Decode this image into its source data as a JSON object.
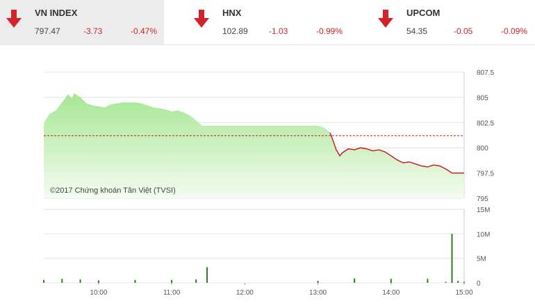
{
  "indices": [
    {
      "name": "VN INDEX",
      "value": "797.47",
      "change": "-3.73",
      "percent": "-0.47%",
      "active": true
    },
    {
      "name": "HNX",
      "value": "102.89",
      "change": "-1.03",
      "percent": "-0.99%",
      "active": false
    },
    {
      "name": "UPCOM",
      "value": "54.35",
      "change": "-0.05",
      "percent": "-0.09%",
      "active": false
    }
  ],
  "colors": {
    "down": "#d2232a",
    "area_top": "#a6e693",
    "area_bottom": "#f4fcf1",
    "line_down": "#cc1f1f",
    "volume": "#2e7d1f",
    "grid": "#e3e3e3"
  },
  "chart": {
    "credit": "©2017 Chứng khoán Tân Việt (TVSI)",
    "reference_level": 801.2,
    "price_ticks": [
      "807.5",
      "805",
      "802.5",
      "800",
      "797.5",
      "795"
    ],
    "volume_ticks": [
      "15M",
      "10M",
      "5M",
      "0"
    ],
    "time_ticks": [
      "10:00",
      "11:00",
      "12:00",
      "13:00",
      "14:00",
      "15:00"
    ]
  },
  "chart_data": {
    "type": "line",
    "price_series": {
      "x": [
        "9:15",
        "9:16",
        "9:20",
        "9:25",
        "9:30",
        "9:35",
        "9:38",
        "9:40",
        "9:45",
        "9:50",
        "9:55",
        "10:00",
        "10:05",
        "10:10",
        "10:15",
        "10:20",
        "10:25",
        "10:30",
        "10:35",
        "10:40",
        "10:45",
        "10:50",
        "10:55",
        "11:00",
        "11:05",
        "11:10",
        "11:15",
        "11:20",
        "11:25",
        "11:30",
        "13:00",
        "13:05",
        "13:08",
        "13:10",
        "13:13",
        "13:15",
        "13:18",
        "13:20",
        "13:25",
        "13:30",
        "13:35",
        "13:40",
        "13:45",
        "13:50",
        "13:55",
        "14:00",
        "14:05",
        "14:10",
        "14:15",
        "14:20",
        "14:25",
        "14:30",
        "14:35",
        "14:40",
        "14:45",
        "14:50",
        "14:55",
        "15:00"
      ],
      "y": [
        802.2,
        802.7,
        803.4,
        803.7,
        804.5,
        805.3,
        804.9,
        805.4,
        805.0,
        804.4,
        804.2,
        804.1,
        804.0,
        804.3,
        804.4,
        804.5,
        804.5,
        804.5,
        804.4,
        804.2,
        804.0,
        803.9,
        803.8,
        803.6,
        803.7,
        803.5,
        803.2,
        802.7,
        802.2,
        802.2,
        802.2,
        802.0,
        801.7,
        801.5,
        800.5,
        799.8,
        799.2,
        799.5,
        799.9,
        799.8,
        800.0,
        799.9,
        799.7,
        799.8,
        799.6,
        799.2,
        798.8,
        798.5,
        798.6,
        798.4,
        798.2,
        798.1,
        798.3,
        798.2,
        797.9,
        797.5,
        797.5,
        797.5
      ]
    },
    "volume_series": {
      "x": [
        "9:15",
        "9:30",
        "9:45",
        "10:00",
        "10:30",
        "11:00",
        "11:20",
        "11:29",
        "13:00",
        "13:30",
        "14:00",
        "14:30",
        "14:45",
        "14:50",
        "14:55",
        "15:00"
      ],
      "y": [
        0.6,
        0.8,
        0.7,
        0.5,
        0.6,
        0.6,
        0.7,
        3.2,
        0.4,
        0.9,
        0.8,
        0.8,
        0.2,
        10.0,
        0.4,
        0.2
      ]
    },
    "ylim": [
      795,
      807.5
    ],
    "volume_ylim": [
      0,
      15
    ],
    "xlim": [
      "9:15",
      "15:00"
    ],
    "unit_volume": "M"
  }
}
